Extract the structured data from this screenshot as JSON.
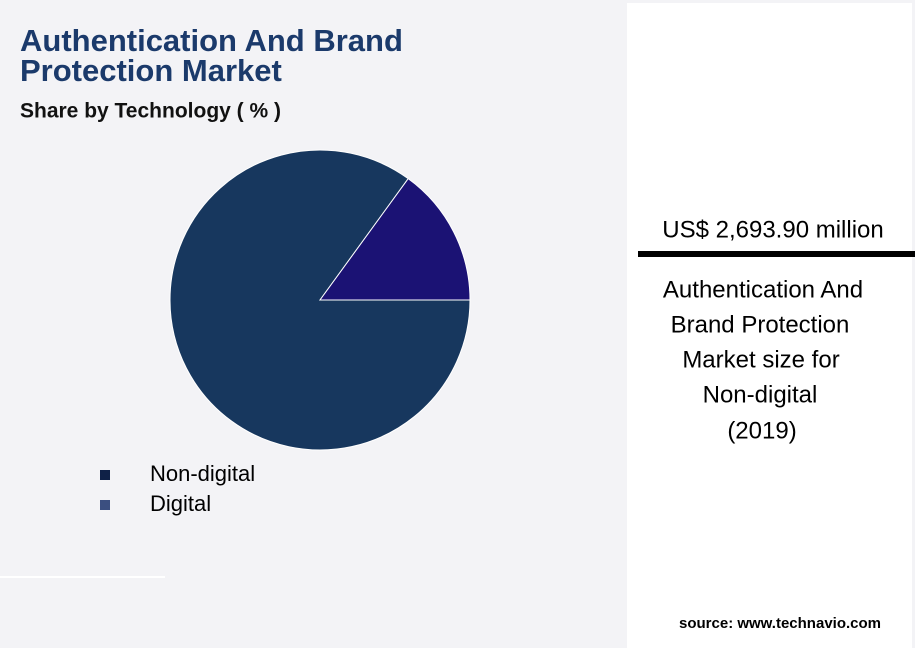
{
  "chart_data": {
    "type": "pie",
    "title": [
      "Authentication And Brand",
      "Protection Market"
    ],
    "subtitle": "Share by Technology ( % )",
    "categories": [
      "Non-digital",
      "Digital"
    ],
    "values": [
      85,
      15
    ],
    "colors": [
      "#17375e",
      "#1b1274"
    ],
    "legend_colors": [
      "#0f2147",
      "#3b4f80"
    ]
  },
  "side_panel": {
    "headline": "US$ 2,693.90 million",
    "description": [
      "Authentication And",
      "Brand Protection",
      "Market size for",
      "Non-digital",
      "(2019)"
    ]
  },
  "source": "source: www.technavio.com"
}
